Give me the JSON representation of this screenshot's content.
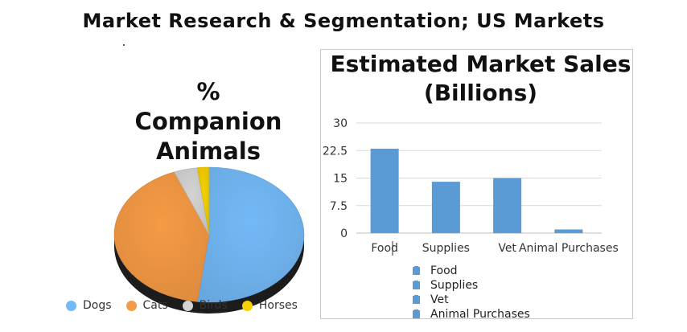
{
  "title": "Market Research & Segmentation; US Markets",
  "chart_data": [
    {
      "type": "pie",
      "title": "% Companion Animals",
      "labels": [
        "Dogs",
        "Cats",
        "Birds",
        "Horses"
      ],
      "values": [
        52,
        42,
        4,
        2
      ],
      "colors": [
        "#73b9f7",
        "#f59a45",
        "#d3d3d3",
        "#f5d000"
      ],
      "legend_position": "bottom"
    },
    {
      "type": "bar",
      "title": "Estimated Market Sales (Billions)",
      "categories": [
        "Food",
        "Supplies",
        "Vet",
        "Animal Purchases"
      ],
      "values": [
        23,
        14,
        15,
        1
      ],
      "ylim": [
        0,
        30
      ],
      "yticks": [
        "0",
        "7.5",
        "15",
        "22.5",
        "30"
      ],
      "grid": true,
      "color": "#5b9bd5",
      "legend_position": "bottom"
    }
  ]
}
